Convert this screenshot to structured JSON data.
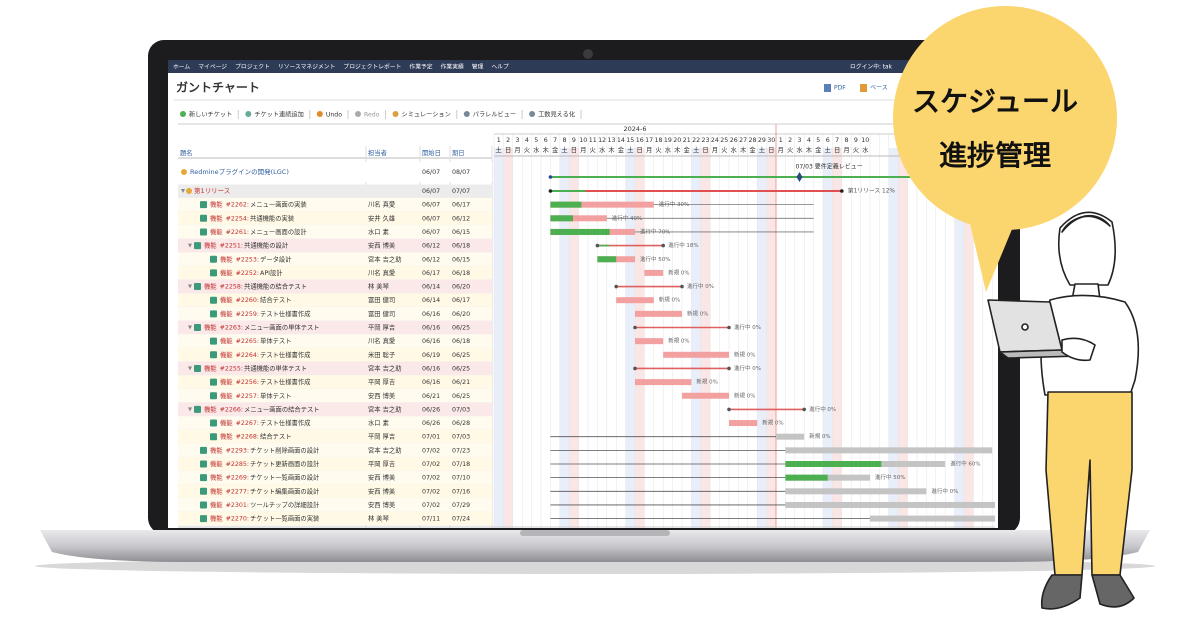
{
  "nav": {
    "items": [
      "ホーム",
      "マイページ",
      "プロジェクト",
      "リソースマネジメント",
      "プロジェクトレポート",
      "作業予定",
      "作業実績",
      "管理",
      "ヘルプ"
    ],
    "login": "ログイン中: tak"
  },
  "page": {
    "title": "ガントチャート",
    "exports": [
      "PDF",
      "ベース"
    ]
  },
  "toolbar": [
    "新しいチケット",
    "チケット連続追加",
    "Undo",
    "Redo",
    "シミュレーション",
    "パラレルビュー",
    "工数見える化"
  ],
  "gantt": {
    "month": "2024-6",
    "days": [
      1,
      2,
      3,
      4,
      5,
      6,
      7,
      8,
      9,
      10,
      11,
      12,
      13,
      14,
      15,
      16,
      17,
      18,
      19,
      20,
      21,
      22,
      23,
      24,
      25,
      26,
      27,
      28,
      29,
      30,
      1,
      2,
      3,
      4,
      5,
      6,
      7,
      8,
      9,
      10
    ],
    "weekdays": [
      "土",
      "日",
      "月",
      "火",
      "水",
      "木",
      "金",
      "土",
      "日",
      "月",
      "火",
      "水",
      "木",
      "金",
      "土",
      "日",
      "月",
      "火",
      "水",
      "木",
      "金",
      "土",
      "日",
      "月",
      "火",
      "水",
      "木",
      "金",
      "土",
      "日",
      "月",
      "火",
      "水",
      "木",
      "金",
      "土",
      "日",
      "月",
      "火",
      "水"
    ],
    "columns": [
      "題名",
      "担当者",
      "開始日",
      "期日"
    ],
    "project": {
      "name": "Redmineプラグインの開発(LGC)",
      "start": "06/07",
      "due": "08/07"
    },
    "milestone": "07/03 要件定義レビュー",
    "version": {
      "name": "第1リリース",
      "start": "06/07",
      "due": "07/07",
      "status": "第1リリース 12%"
    },
    "issues": [
      {
        "tracker": "機能",
        "id": "#2262:",
        "subject": "メニュー画面の実装",
        "assignee": "川名 真愛",
        "start": "06/07",
        "due": "06/17",
        "status": "進行中 30%"
      },
      {
        "tracker": "機能",
        "id": "#2254:",
        "subject": "共通機能の実装",
        "assignee": "安井 久雄",
        "start": "06/07",
        "due": "06/12",
        "status": "進行中 40%"
      },
      {
        "tracker": "機能",
        "id": "#2261:",
        "subject": "メニュー画面の設計",
        "assignee": "水口 素",
        "start": "06/07",
        "due": "06/15",
        "status": "進行中 70%"
      },
      {
        "tracker": "機能",
        "id": "#2251:",
        "subject": "共通機能の設計",
        "assignee": "安西 博美",
        "start": "06/12",
        "due": "06/18",
        "status": "進行中 18%",
        "children": [
          {
            "tracker": "機能",
            "id": "#2253:",
            "subject": "データ設計",
            "assignee": "宮本 吉之助",
            "start": "06/12",
            "due": "06/15",
            "status": "進行中 50%"
          },
          {
            "tracker": "機能",
            "id": "#2252:",
            "subject": "API設計",
            "assignee": "川名 真愛",
            "start": "06/17",
            "due": "06/18",
            "status": "新規 0%"
          }
        ]
      },
      {
        "tracker": "機能",
        "id": "#2258:",
        "subject": "共通機能の結合テスト",
        "assignee": "林 美琴",
        "start": "06/14",
        "due": "06/20",
        "status": "進行中 0%",
        "children": [
          {
            "tracker": "機能",
            "id": "#2260:",
            "subject": "結合テスト",
            "assignee": "冨田 健司",
            "start": "06/14",
            "due": "06/17",
            "status": "新規 0%"
          },
          {
            "tracker": "機能",
            "id": "#2259:",
            "subject": "テスト仕様書作成",
            "assignee": "冨田 健司",
            "start": "06/16",
            "due": "06/20",
            "status": "新規 0%"
          }
        ]
      },
      {
        "tracker": "機能",
        "id": "#2263:",
        "subject": "メニュー画面の単体テスト",
        "assignee": "平岡 厚吉",
        "start": "06/16",
        "due": "06/25",
        "status": "進行中 0%",
        "children": [
          {
            "tracker": "機能",
            "id": "#2265:",
            "subject": "単体テスト",
            "assignee": "川名 真愛",
            "start": "06/16",
            "due": "06/18",
            "status": "新規 0%"
          },
          {
            "tracker": "機能",
            "id": "#2264:",
            "subject": "テスト仕様書作成",
            "assignee": "米田 聡子",
            "start": "06/19",
            "due": "06/25",
            "status": "新規 0%"
          }
        ]
      },
      {
        "tracker": "機能",
        "id": "#2255:",
        "subject": "共通機能の単体テスト",
        "assignee": "宮本 吉之助",
        "start": "06/16",
        "due": "06/25",
        "status": "進行中 0%",
        "children": [
          {
            "tracker": "機能",
            "id": "#2256:",
            "subject": "テスト仕様書作成",
            "assignee": "平岡 厚吉",
            "start": "06/16",
            "due": "06/21",
            "status": "新規 0%"
          },
          {
            "tracker": "機能",
            "id": "#2257:",
            "subject": "単体テスト",
            "assignee": "安西 博美",
            "start": "06/21",
            "due": "06/25",
            "status": "新規 0%"
          }
        ]
      },
      {
        "tracker": "機能",
        "id": "#2266:",
        "subject": "メニュー画面の結合テスト",
        "assignee": "宮本 吉之助",
        "start": "06/26",
        "due": "07/03",
        "status": "進行中 0%",
        "children": [
          {
            "tracker": "機能",
            "id": "#2267:",
            "subject": "テスト仕様書作成",
            "assignee": "水口 素",
            "start": "06/26",
            "due": "06/28",
            "status": "新規 0%"
          },
          {
            "tracker": "機能",
            "id": "#2268:",
            "subject": "結合テスト",
            "assignee": "平岡 厚吉",
            "start": "07/01",
            "due": "07/03",
            "status": "新規 0%"
          }
        ]
      },
      {
        "tracker": "機能",
        "id": "#2293:",
        "subject": "チケット削除画面の設計",
        "assignee": "宮本 吉之助",
        "start": "07/02",
        "due": "07/23"
      },
      {
        "tracker": "機能",
        "id": "#2285:",
        "subject": "チケット更新画面の設計",
        "assignee": "平岡 厚吉",
        "start": "07/02",
        "due": "07/18",
        "status": "進行中 60%"
      },
      {
        "tracker": "機能",
        "id": "#2269:",
        "subject": "チケット一覧画面の設計",
        "assignee": "安西 博美",
        "start": "07/02",
        "due": "07/10",
        "status": "進行中 50%"
      },
      {
        "tracker": "機能",
        "id": "#2277:",
        "subject": "チケット編集画面の設計",
        "assignee": "安西 博美",
        "start": "07/02",
        "due": "07/16",
        "status": "進行中 0%"
      },
      {
        "tracker": "機能",
        "id": "#2301:",
        "subject": "ツールチップの詳細設計",
        "assignee": "安西 博美",
        "start": "07/02",
        "due": "07/29"
      },
      {
        "tracker": "機能",
        "id": "#2270:",
        "subject": "チケット一覧画面の実装",
        "assignee": "林 美琴",
        "start": "07/11",
        "due": "07/24"
      }
    ]
  },
  "bubble": [
    "スケジュール",
    "進捗管理"
  ]
}
